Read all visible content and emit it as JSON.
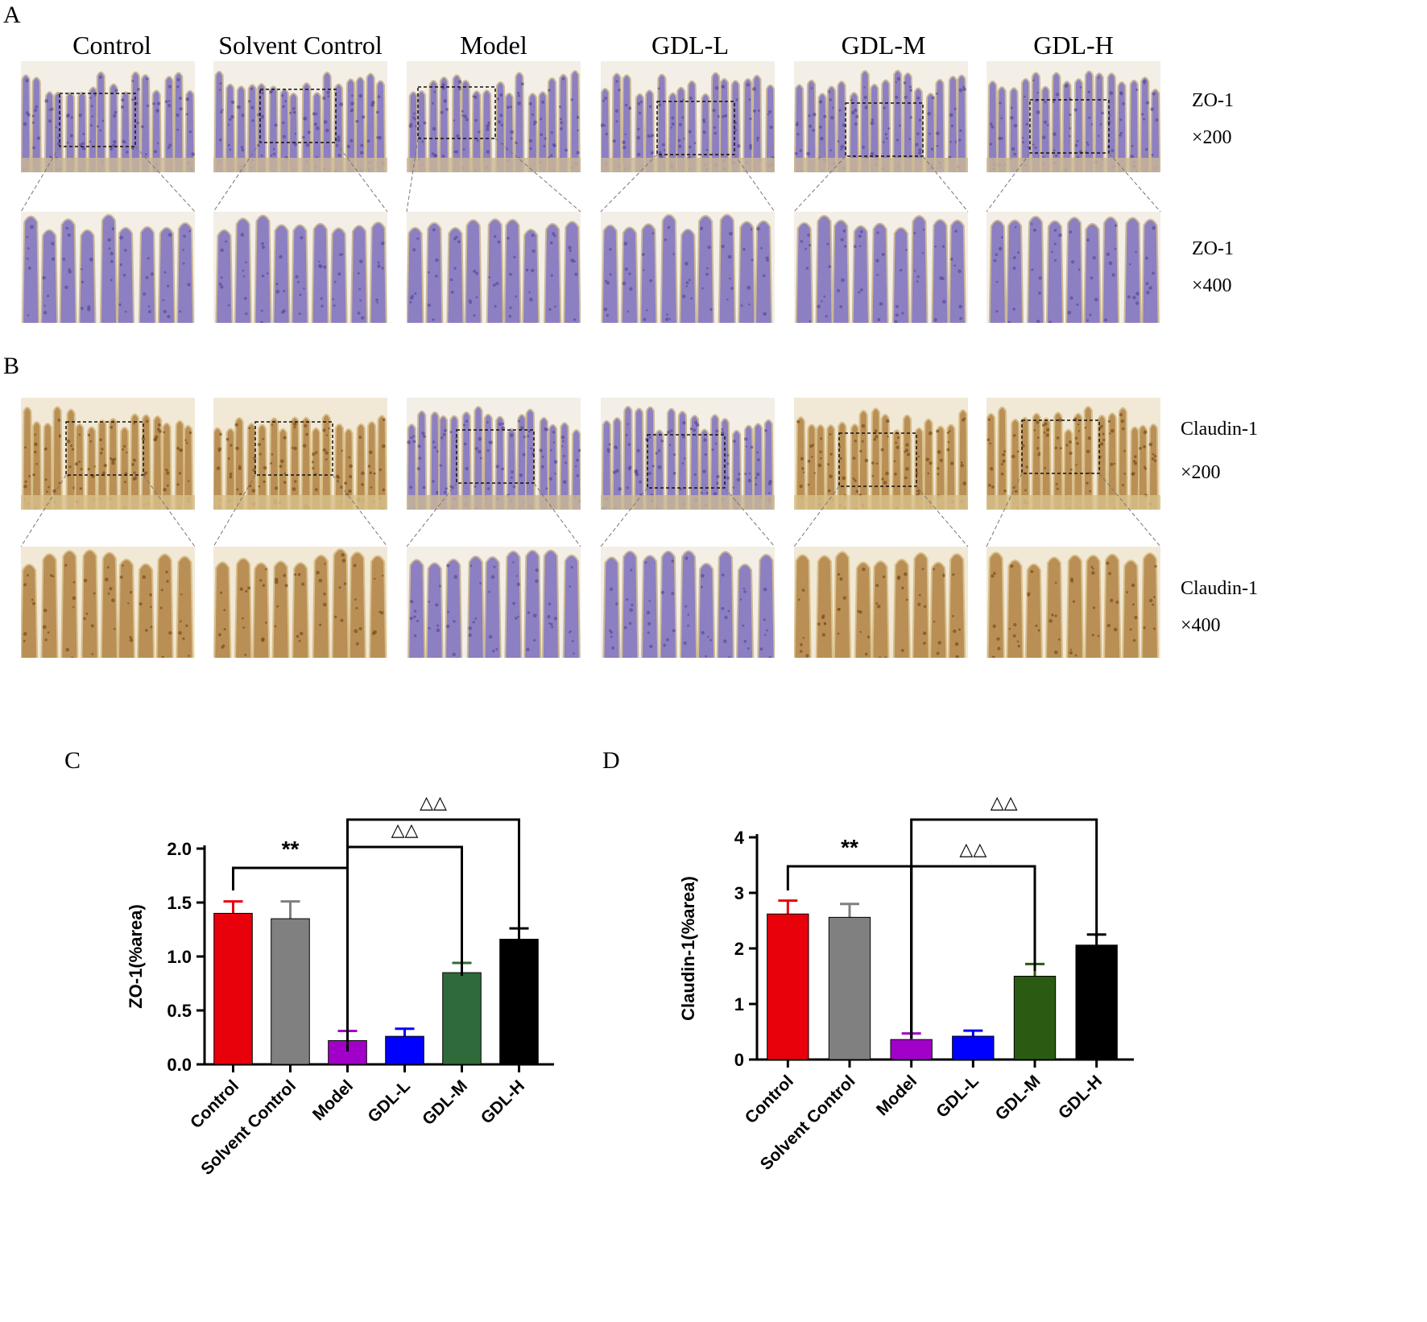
{
  "panels": {
    "A": {
      "letter": "A"
    },
    "B": {
      "letter": "B"
    },
    "C": {
      "letter": "C"
    },
    "D": {
      "letter": "D"
    }
  },
  "columns": [
    "Control",
    "Solvent Control",
    "Model",
    "GDL-L",
    "GDL-M",
    "GDL-H"
  ],
  "row_labels": {
    "zo1_200": {
      "name": "ZO-1",
      "mag": "×200"
    },
    "zo1_400": {
      "name": "ZO-1",
      "mag": "×400"
    },
    "cl1_200": {
      "name": "Claudin-1",
      "mag": "×200"
    },
    "cl1_400": {
      "name": "Claudin-1",
      "mag": "×400"
    }
  },
  "stain": {
    "zo1": [
      "purple",
      "purple",
      "purple",
      "purple",
      "purple",
      "purple"
    ],
    "claudin1": [
      "brown",
      "brown",
      "purple",
      "purple",
      "brown",
      "brown"
    ]
  },
  "colors": {
    "Control": "#e8000b",
    "Solvent Control": "#808080",
    "Model": "#a100c8",
    "GDL-L": "#0000ff",
    "GDL-M": "#2f6b3a",
    "GDL-H": "#000000",
    "GDL-M-D": "#2b5a12"
  },
  "chart_data": [
    {
      "type": "bar",
      "panel": "C",
      "categories": [
        "Control",
        "Solvent Control",
        "Model",
        "GDL-L",
        "GDL-M",
        "GDL-H"
      ],
      "values": [
        1.4,
        1.35,
        0.22,
        0.26,
        0.85,
        1.16
      ],
      "errors": [
        0.11,
        0.16,
        0.09,
        0.07,
        0.09,
        0.1
      ],
      "ylabel": "ZO-1(%area)",
      "xlabel": "",
      "ylim": [
        0,
        2.0
      ],
      "yticks": [
        "0.0",
        "0.5",
        "1.0",
        "1.5",
        "2.0"
      ],
      "grid": false,
      "annotations": [
        {
          "from": "Control",
          "to": "Model",
          "text": "**"
        },
        {
          "from": "Model",
          "to": "GDL-M",
          "text": "△△"
        },
        {
          "from": "Model",
          "to": "GDL-H",
          "text": "△△"
        }
      ]
    },
    {
      "type": "bar",
      "panel": "D",
      "categories": [
        "Control",
        "Solvent Control",
        "Model",
        "GDL-L",
        "GDL-M",
        "GDL-H"
      ],
      "values": [
        2.62,
        2.56,
        0.36,
        0.42,
        1.5,
        2.06
      ],
      "errors": [
        0.24,
        0.24,
        0.11,
        0.1,
        0.22,
        0.19
      ],
      "ylabel": "Claudin-1(%area)",
      "xlabel": "",
      "ylim": [
        0,
        4
      ],
      "yticks": [
        "0",
        "1",
        "2",
        "3",
        "4"
      ],
      "grid": false,
      "annotations": [
        {
          "from": "Control",
          "to": "Model",
          "text": "**"
        },
        {
          "from": "Model",
          "to": "GDL-M",
          "text": "△△"
        },
        {
          "from": "Model",
          "to": "GDL-H",
          "text": "△△"
        }
      ]
    }
  ]
}
